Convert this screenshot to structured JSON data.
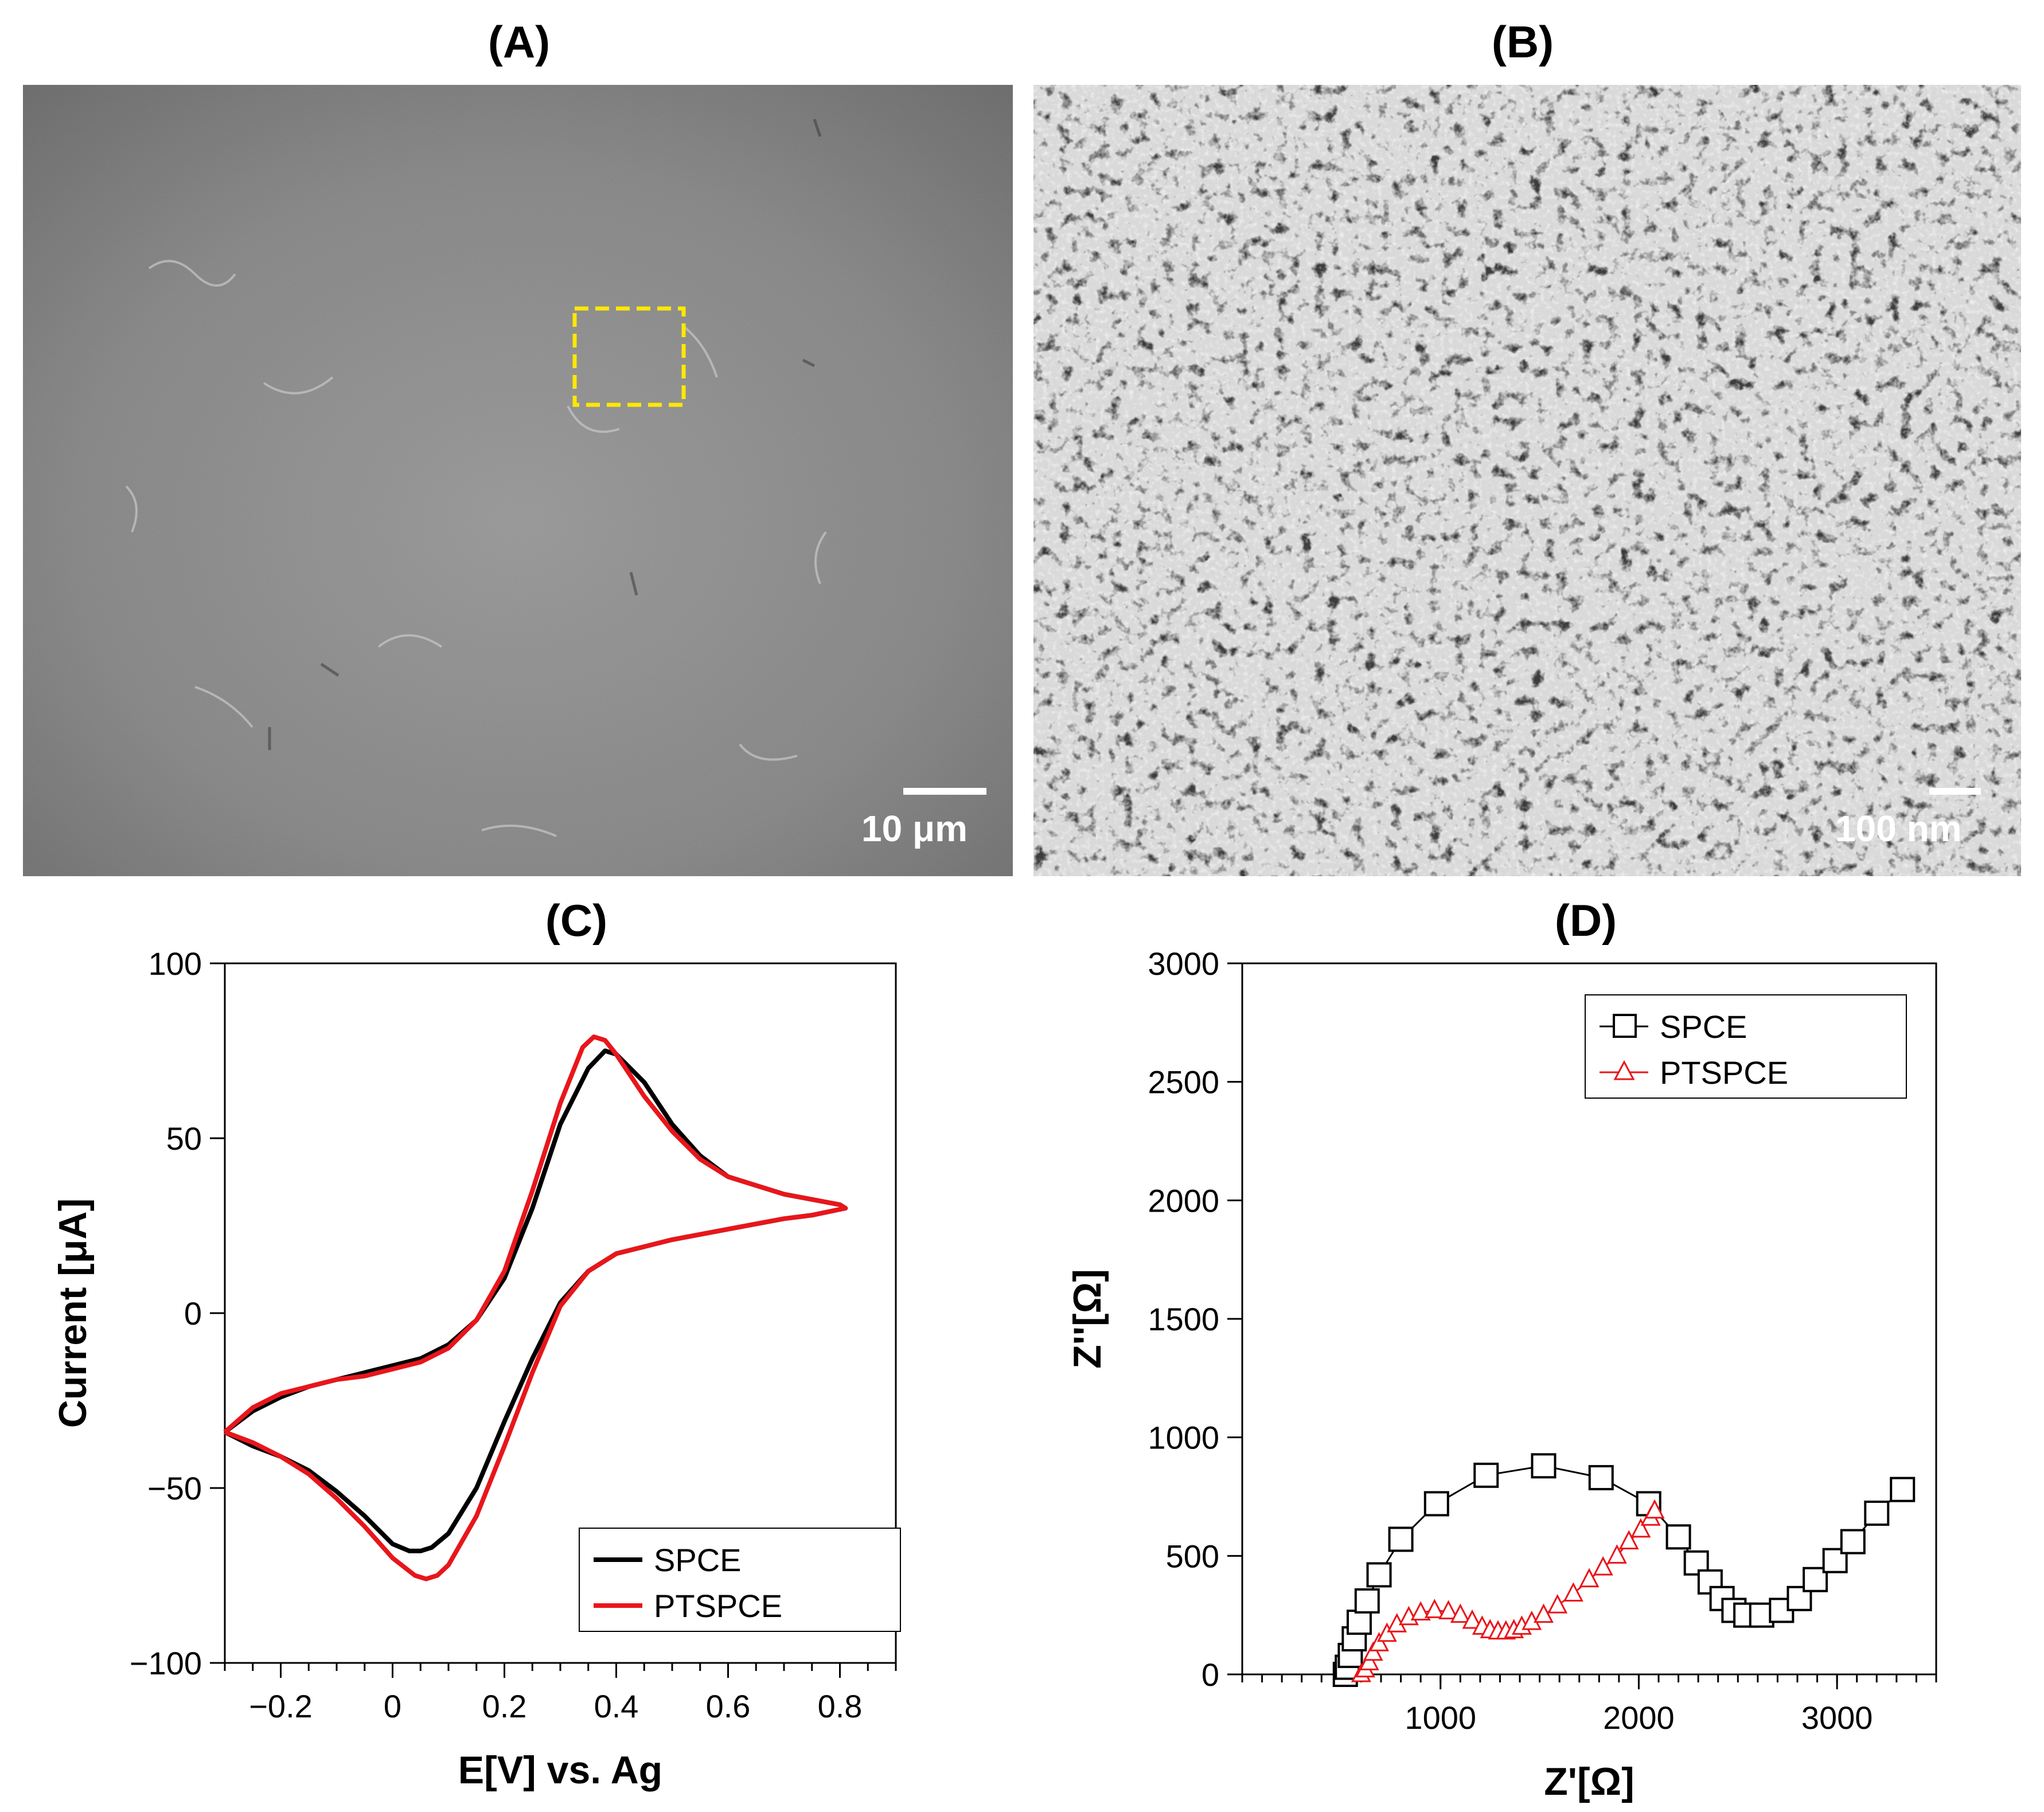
{
  "panels": {
    "a": {
      "label": "(A)",
      "scale_bar_label": "10 μm"
    },
    "b": {
      "label": "(B)",
      "scale_bar_label": "100 nm"
    },
    "c": {
      "label": "(C)"
    },
    "d": {
      "label": "(D)"
    }
  },
  "chart_data": [
    {
      "type": "line",
      "panel": "(C)",
      "title": "(C)",
      "xlabel": "E[V] vs. Ag",
      "ylabel": "Current [μA]",
      "xlim": [
        -0.3,
        0.9
      ],
      "ylim": [
        -100,
        100
      ],
      "xticks": [
        -0.2,
        0,
        0.2,
        0.4,
        0.6,
        0.8
      ],
      "xtick_labels": [
        "−0.2",
        "0",
        "0.2",
        "0.4",
        "0.6",
        "0.8"
      ],
      "yticks": [
        -100,
        -50,
        0,
        50,
        100
      ],
      "ytick_labels": [
        "−100",
        "−50",
        "0",
        "50",
        "100"
      ],
      "legend": "bottom-right",
      "series": [
        {
          "name": "SPCE",
          "color": "#000000",
          "x": [
            -0.3,
            -0.25,
            -0.2,
            -0.15,
            -0.1,
            -0.05,
            0,
            0.05,
            0.1,
            0.15,
            0.2,
            0.25,
            0.3,
            0.35,
            0.38,
            0.4,
            0.45,
            0.5,
            0.55,
            0.6,
            0.7,
            0.8,
            0.81,
            0.75,
            0.7,
            0.6,
            0.5,
            0.45,
            0.4,
            0.35,
            0.3,
            0.25,
            0.2,
            0.15,
            0.1,
            0.07,
            0.05,
            0.03,
            0,
            -0.05,
            -0.1,
            -0.15,
            -0.2,
            -0.25,
            -0.3
          ],
          "y": [
            -34,
            -28,
            -24,
            -21,
            -19,
            -17,
            -15,
            -13,
            -9,
            -2,
            10,
            30,
            54,
            70,
            75,
            74,
            66,
            54,
            45,
            39,
            34,
            31,
            30,
            28,
            27,
            24,
            21,
            19,
            17,
            12,
            3,
            -13,
            -31,
            -50,
            -63,
            -67,
            -68,
            -68,
            -66,
            -58,
            -51,
            -45,
            -41,
            -38,
            -34
          ]
        },
        {
          "name": "PTSPCE",
          "color": "#e8161b",
          "x": [
            -0.3,
            -0.25,
            -0.2,
            -0.15,
            -0.1,
            -0.05,
            0,
            0.05,
            0.1,
            0.15,
            0.2,
            0.25,
            0.3,
            0.34,
            0.36,
            0.38,
            0.4,
            0.45,
            0.5,
            0.55,
            0.6,
            0.7,
            0.8,
            0.81,
            0.75,
            0.7,
            0.6,
            0.5,
            0.45,
            0.4,
            0.35,
            0.3,
            0.25,
            0.2,
            0.15,
            0.1,
            0.08,
            0.06,
            0.04,
            0,
            -0.05,
            -0.1,
            -0.15,
            -0.2,
            -0.25,
            -0.3
          ],
          "y": [
            -34,
            -27,
            -23,
            -21,
            -19,
            -18,
            -16,
            -14,
            -10,
            -2,
            12,
            35,
            60,
            76,
            79,
            78,
            74,
            62,
            52,
            44,
            39,
            34,
            31,
            30,
            28,
            27,
            24,
            21,
            19,
            17,
            12,
            2,
            -17,
            -38,
            -58,
            -72,
            -75,
            -76,
            -75,
            -70,
            -61,
            -53,
            -46,
            -41,
            -37,
            -34
          ]
        }
      ]
    },
    {
      "type": "line",
      "panel": "(D)",
      "title": "(D)",
      "xlabel": "Z'[Ω]",
      "ylabel": "Z''[Ω]",
      "xlim": [
        0,
        3500
      ],
      "ylim": [
        0,
        3000
      ],
      "xticks": [
        1000,
        2000,
        3000
      ],
      "xtick_labels": [
        "1000",
        "2000",
        "3000"
      ],
      "yticks": [
        0,
        500,
        1000,
        1500,
        2000,
        2500,
        3000
      ],
      "ytick_labels": [
        "0",
        "500",
        "1000",
        "1500",
        "2000",
        "2500",
        "3000"
      ],
      "legend": "top-right",
      "series": [
        {
          "name": "SPCE",
          "color": "#000000",
          "marker": "square",
          "x": [
            520,
            530,
            545,
            565,
            590,
            630,
            690,
            800,
            980,
            1230,
            1520,
            1810,
            2050,
            2200,
            2290,
            2360,
            2420,
            2480,
            2540,
            2620,
            2720,
            2810,
            2890,
            2990,
            3080,
            3200,
            3330
          ],
          "y": [
            0,
            30,
            80,
            150,
            220,
            310,
            420,
            570,
            720,
            840,
            880,
            830,
            720,
            580,
            470,
            390,
            320,
            270,
            250,
            250,
            270,
            320,
            400,
            480,
            560,
            680,
            780
          ]
        },
        {
          "name": "PTSPCE",
          "color": "#e8161b",
          "marker": "triangle",
          "x": [
            600,
            620,
            640,
            660,
            690,
            730,
            780,
            840,
            900,
            970,
            1040,
            1100,
            1160,
            1210,
            1250,
            1290,
            1330,
            1370,
            1410,
            1460,
            1520,
            1590,
            1670,
            1750,
            1820,
            1890,
            1950,
            2010,
            2060,
            2080
          ],
          "y": [
            0,
            20,
            50,
            90,
            130,
            170,
            210,
            240,
            260,
            270,
            265,
            250,
            225,
            200,
            185,
            180,
            180,
            185,
            200,
            220,
            250,
            290,
            340,
            400,
            450,
            500,
            560,
            610,
            660,
            690
          ]
        }
      ]
    }
  ]
}
